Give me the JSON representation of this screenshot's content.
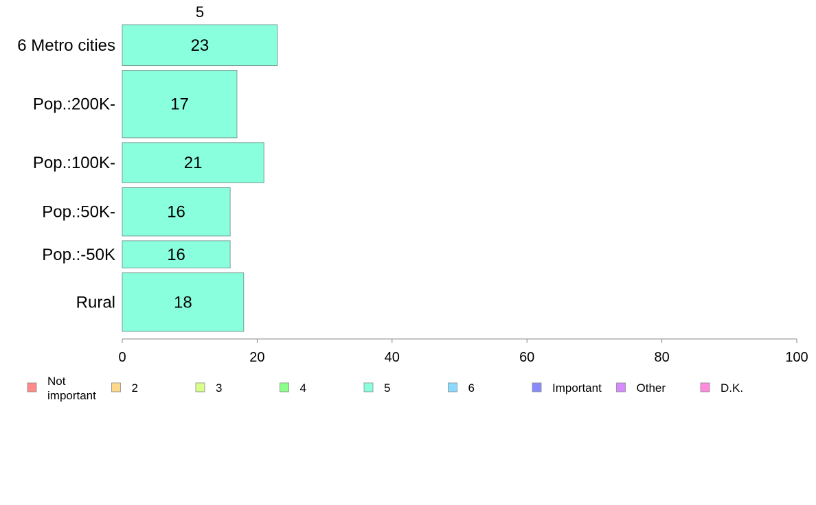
{
  "chart_data": {
    "type": "bar",
    "orientation": "horizontal",
    "stacked": true,
    "top_label": "5",
    "categories": [
      "6 Metro cities",
      "Pop.:200K-",
      "Pop.:100K-",
      "Pop.:50K-",
      "Pop.:-50K",
      "Rural"
    ],
    "series": [
      {
        "name": "5",
        "color": "#8affde",
        "values": [
          23,
          17,
          21,
          16,
          16,
          18
        ]
      }
    ],
    "relative_widths": [
      0.12,
      0.198,
      0.118,
      0.142,
      0.08,
      0.172
    ],
    "xlim": [
      0,
      100
    ],
    "xticks": [
      0,
      20,
      40,
      60,
      80,
      100
    ],
    "grid": false,
    "legend_position": "bottom",
    "legend": [
      {
        "label": "Not\nimportant",
        "color": "#ff8a8a"
      },
      {
        "label": "2",
        "color": "#ffd98a"
      },
      {
        "label": "3",
        "color": "#d9ff8a"
      },
      {
        "label": "4",
        "color": "#8aff8a"
      },
      {
        "label": "5",
        "color": "#8affde"
      },
      {
        "label": "6",
        "color": "#8ad9ff"
      },
      {
        "label": "Important",
        "color": "#8a8aff"
      },
      {
        "label": "Other",
        "color": "#d98aff"
      },
      {
        "label": "D.K.",
        "color": "#ff8ade"
      }
    ]
  }
}
